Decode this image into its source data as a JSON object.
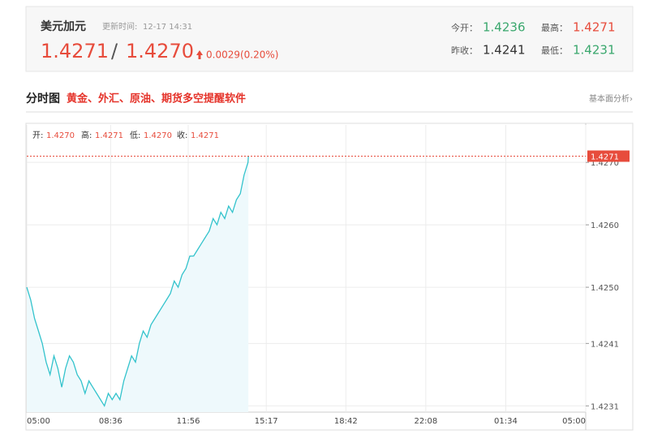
{
  "header": {
    "name": "美元加元",
    "update_label": "更新时间:",
    "update_time": "12-17 14:31",
    "price": "1.4271",
    "separator": "/",
    "price2": "1.4270",
    "change": "0.0029(0.20%)",
    "stats": [
      {
        "label": "今开：",
        "value": "1.4236",
        "color": "#3aa76d"
      },
      {
        "label": "最高：",
        "value": "1.4271",
        "color": "#e74c3c"
      },
      {
        "label": "昨收：",
        "value": "1.4241",
        "color": "#333333"
      },
      {
        "label": "最低：",
        "value": "1.4231",
        "color": "#3aa76d"
      }
    ]
  },
  "section": {
    "title": "分时图",
    "promo": "黄金、外汇、原油、期货多空提醒软件",
    "link": "基本面分析›"
  },
  "chart_data": {
    "type": "line",
    "ohlc": [
      {
        "label": "开:",
        "value": "1.4270"
      },
      {
        "label": "高:",
        "value": "1.4271"
      },
      {
        "label": "低:",
        "value": "1.4270"
      },
      {
        "label": "收:",
        "value": "1.4271"
      }
    ],
    "x": [
      "05:00",
      "05:10",
      "05:20",
      "05:30",
      "05:40",
      "05:50",
      "06:00",
      "06:10",
      "06:20",
      "06:30",
      "06:40",
      "06:50",
      "07:00",
      "07:10",
      "07:20",
      "07:30",
      "07:40",
      "07:50",
      "08:00",
      "08:10",
      "08:20",
      "08:30",
      "08:40",
      "08:50",
      "09:00",
      "09:10",
      "09:20",
      "09:30",
      "09:40",
      "09:50",
      "10:00",
      "10:10",
      "10:20",
      "10:30",
      "10:40",
      "10:50",
      "11:00",
      "11:10",
      "11:20",
      "11:30",
      "11:40",
      "11:50",
      "12:00",
      "12:10",
      "12:20",
      "12:30",
      "12:40",
      "12:50",
      "13:00",
      "13:10",
      "13:20",
      "13:30",
      "13:40",
      "13:50",
      "14:00",
      "14:10",
      "14:20",
      "14:30",
      "14:31"
    ],
    "series": [
      {
        "color": "#33c3cc",
        "values": [
          1.425,
          1.4248,
          1.4245,
          1.4243,
          1.4241,
          1.4238,
          1.4236,
          1.4239,
          1.4237,
          1.4234,
          1.4237,
          1.4239,
          1.4238,
          1.4236,
          1.4235,
          1.4233,
          1.4235,
          1.4234,
          1.4233,
          1.4232,
          1.4231,
          1.4233,
          1.4232,
          1.4233,
          1.4232,
          1.4235,
          1.4237,
          1.4239,
          1.4238,
          1.4241,
          1.4243,
          1.4242,
          1.4244,
          1.4245,
          1.4246,
          1.4247,
          1.4248,
          1.4249,
          1.4251,
          1.425,
          1.4252,
          1.4253,
          1.4255,
          1.4255,
          1.4256,
          1.4257,
          1.4258,
          1.4259,
          1.4261,
          1.426,
          1.4262,
          1.4261,
          1.4263,
          1.4262,
          1.4264,
          1.4265,
          1.4268,
          1.427,
          1.4271
        ]
      }
    ],
    "area_color": "#eef9fc",
    "last": 1.4271,
    "last_color": "#e74c3c",
    "ylim": [
      1.423,
      1.4276
    ],
    "yticks": [
      1.4231,
      1.4241,
      {
        "value": 1.425,
        "label": "1.4250"
      },
      {
        "value": 1.426,
        "label": "1.4260"
      },
      {
        "value": 1.427,
        "label": "1.4270"
      }
    ],
    "xticks": [
      "05:00",
      "08:36",
      "11:56",
      "15:17",
      "18:42",
      "22:08",
      "01:34",
      "05:00"
    ],
    "grid": true
  }
}
